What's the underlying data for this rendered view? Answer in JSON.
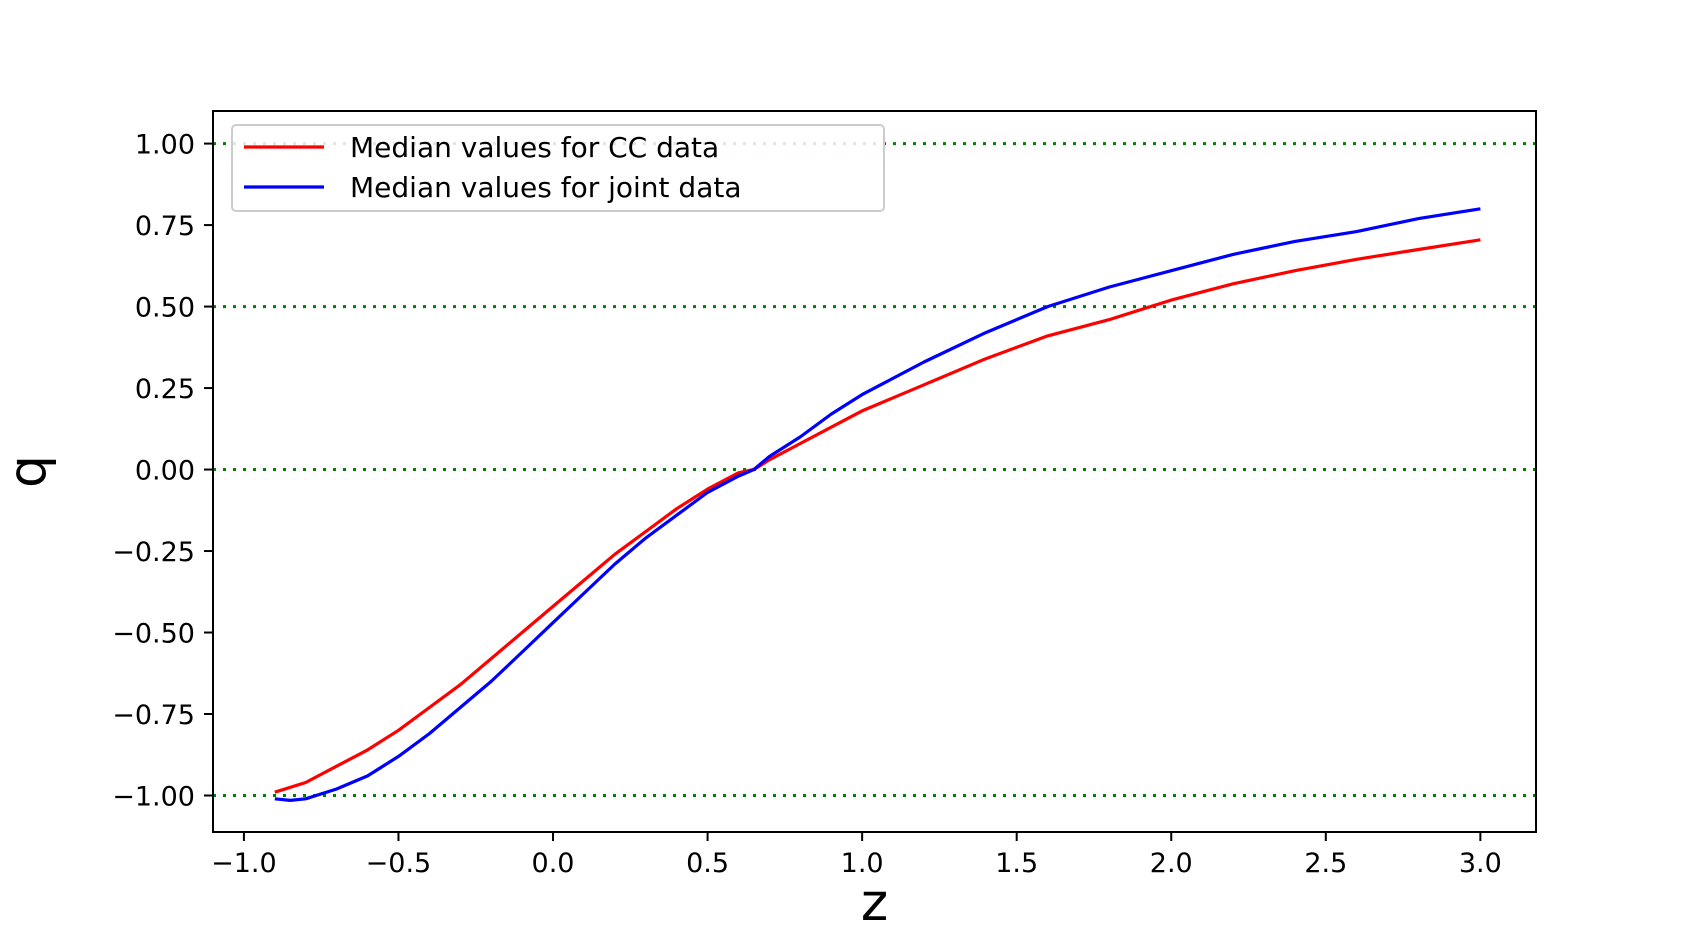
{
  "chart_data": {
    "type": "line",
    "title": "",
    "xlabel": "z",
    "ylabel": "q",
    "xlim": [
      -1.1,
      3.18
    ],
    "ylim": [
      -1.112,
      1.1
    ],
    "xticks": [
      -1.0,
      -0.5,
      0.0,
      0.5,
      1.0,
      1.5,
      2.0,
      2.5,
      3.0
    ],
    "xtick_labels": [
      "−1.0",
      "−0.5",
      "0.0",
      "0.5",
      "1.0",
      "1.5",
      "2.0",
      "2.5",
      "3.0"
    ],
    "yticks": [
      1.0,
      0.75,
      0.5,
      0.25,
      0.0,
      -0.25,
      -0.5,
      -0.75,
      -1.0
    ],
    "ytick_labels": [
      "1.00",
      "0.75",
      "0.50",
      "0.25",
      "0.00",
      "−0.25",
      "−0.50",
      "−0.75",
      "−1.00"
    ],
    "reference_lines": {
      "y": [
        1.0,
        0.5,
        0.0,
        -1.0
      ],
      "style": "dotted",
      "color": "#008000"
    },
    "grid": false,
    "legend_position": "upper-left",
    "series": [
      {
        "name": "Median values for CC data",
        "color": "#ff0000",
        "x": [
          -0.9,
          -0.8,
          -0.7,
          -0.6,
          -0.5,
          -0.4,
          -0.3,
          -0.2,
          -0.1,
          0.0,
          0.1,
          0.2,
          0.3,
          0.4,
          0.5,
          0.6,
          0.65,
          0.7,
          0.8,
          0.9,
          1.0,
          1.2,
          1.4,
          1.6,
          1.8,
          1.9,
          2.0,
          2.2,
          2.4,
          2.6,
          2.8,
          3.0
        ],
        "y": [
          -0.99,
          -0.96,
          -0.91,
          -0.86,
          -0.8,
          -0.73,
          -0.66,
          -0.58,
          -0.5,
          -0.42,
          -0.34,
          -0.26,
          -0.19,
          -0.12,
          -0.06,
          -0.01,
          0.0,
          0.03,
          0.08,
          0.13,
          0.18,
          0.26,
          0.34,
          0.41,
          0.46,
          0.49,
          0.52,
          0.57,
          0.61,
          0.645,
          0.675,
          0.705
        ]
      },
      {
        "name": "Median values for joint data",
        "color": "#0000ff",
        "x": [
          -0.9,
          -0.85,
          -0.8,
          -0.7,
          -0.6,
          -0.5,
          -0.4,
          -0.3,
          -0.2,
          -0.1,
          0.0,
          0.1,
          0.2,
          0.3,
          0.4,
          0.5,
          0.6,
          0.65,
          0.7,
          0.8,
          0.9,
          1.0,
          1.2,
          1.4,
          1.6,
          1.8,
          2.0,
          2.2,
          2.4,
          2.6,
          2.8,
          3.0
        ],
        "y": [
          -1.01,
          -1.015,
          -1.01,
          -0.98,
          -0.94,
          -0.88,
          -0.81,
          -0.73,
          -0.65,
          -0.56,
          -0.47,
          -0.38,
          -0.29,
          -0.21,
          -0.14,
          -0.07,
          -0.02,
          0.0,
          0.04,
          0.1,
          0.17,
          0.23,
          0.33,
          0.42,
          0.5,
          0.56,
          0.61,
          0.66,
          0.7,
          0.73,
          0.77,
          0.8
        ]
      }
    ]
  }
}
